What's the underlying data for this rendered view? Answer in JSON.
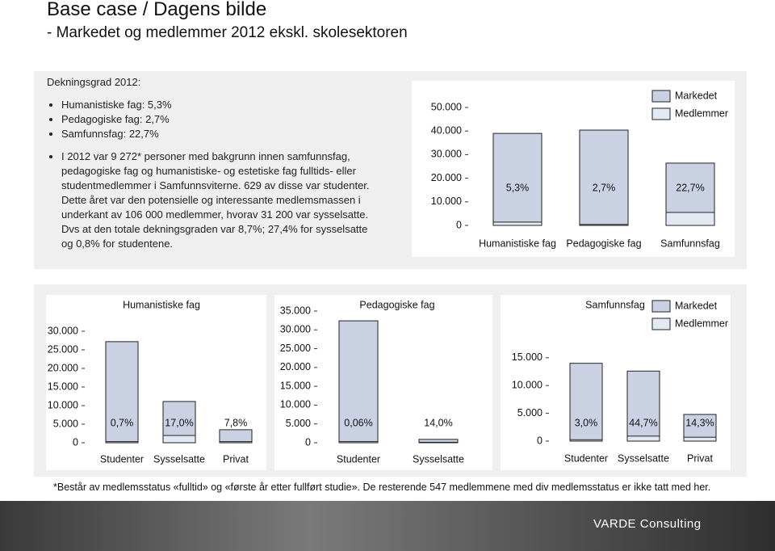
{
  "header": {
    "title": "Base case / Dagens bilde",
    "subtitle": "- Markedet og medlemmer 2012 ekskl. skolesektoren"
  },
  "text_box": {
    "heading": "Dekningsgrad 2012:",
    "bullets": [
      "Humanistiske fag: 5,3%",
      "Pedagogiske fag: 2,7%",
      "Samfunnsfag: 22,7%"
    ],
    "paragraph": "I 2012 var 9 272* personer med bakgrunn innen samfunnsfag, pedagogiske fag og humanistiske- og estetiske fag fulltids- eller studentmedlemmer i Samfunnsviterne. 629 av disse var studenter. Dette året var den potensielle og interessante medlemsmassen i underkant av 106 000 medlemmer, hvorav 31 200 var sysselsatte. Dvs at den totale dekningsgraden var 8,7%; 27,4% for sysselsatte og 0,8% for studentene."
  },
  "chart_data": [
    {
      "type": "bar",
      "categories": [
        "Humanistiske fag",
        "Pedagogiske fag",
        "Samfunnsfag"
      ],
      "series": [
        {
          "name": "Markedet",
          "color": "#c9d1e3",
          "values": [
            39000,
            40400,
            26400
          ]
        },
        {
          "name": "Medlemmer",
          "color": "#e3e9f2",
          "values": [
            1400,
            400,
            5500
          ]
        }
      ],
      "labels": {
        "values": [
          5.3,
          2.7,
          22.7
        ],
        "value_labels": [
          "5,3%",
          "2,7%",
          "22,7%"
        ]
      },
      "ylim": [
        0,
        50000
      ],
      "yticks": [
        0,
        {
          "value": 10000,
          "label": "10.000"
        },
        {
          "value": 20000,
          "label": "20.000"
        },
        {
          "value": 30000,
          "label": "30.000"
        },
        {
          "value": 40000,
          "label": "40.000"
        },
        {
          "value": 50000,
          "label": "50.000"
        }
      ],
      "legend": "top-right"
    },
    {
      "type": "bar",
      "title": "Humanistiske fag",
      "categories": [
        "Studenter",
        "Sysselsatte",
        "Privat"
      ],
      "series": [
        {
          "name": "Markedet",
          "color": "#c9d1e3",
          "values": [
            27200,
            11100,
            3500
          ]
        },
        {
          "name": "Medlemmer",
          "color": "#e3e9f2",
          "values": [
            300,
            1950,
            300
          ]
        }
      ],
      "labels": {
        "values": [
          0.7,
          17.0,
          7.8
        ],
        "value_labels": [
          "0,7%",
          "17,0%",
          "7,8%"
        ]
      },
      "ylim": [
        0,
        30000
      ],
      "yticks": [
        0,
        {
          "value": 5000,
          "label": "5.000"
        },
        {
          "value": 10000,
          "label": "10.000"
        },
        {
          "value": 15000,
          "label": "15.000"
        },
        {
          "value": 20000,
          "label": "20.000"
        },
        {
          "value": 25000,
          "label": "25.000"
        },
        {
          "value": 30000,
          "label": "30.000"
        }
      ]
    },
    {
      "type": "bar",
      "title": "Pedagogiske fag",
      "categories": [
        "Studenter",
        "Sysselsatte"
      ],
      "series": [
        {
          "name": "Markedet",
          "color": "#c9d1e3",
          "values": [
            32400,
            900
          ]
        },
        {
          "name": "Medlemmer",
          "color": "#e3e9f2",
          "values": [
            300,
            130
          ]
        }
      ],
      "labels": {
        "values": [
          0.06,
          14.0
        ],
        "value_labels": [
          "0,06%",
          "14,0%"
        ]
      },
      "ylim": [
        0,
        35000
      ],
      "yticks": [
        0,
        {
          "value": 5000,
          "label": "5.000"
        },
        {
          "value": 10000,
          "label": "10.000"
        },
        {
          "value": 15000,
          "label": "15.000"
        },
        {
          "value": 20000,
          "label": "20.000"
        },
        {
          "value": 25000,
          "label": "25.000"
        },
        {
          "value": 30000,
          "label": "30.000"
        },
        {
          "value": 35000,
          "label": "35.000"
        }
      ]
    },
    {
      "type": "bar",
      "title": "Samfunnsfag",
      "categories": [
        "Studenter",
        "Sysselsatte",
        "Privat"
      ],
      "series": [
        {
          "name": "Markedet",
          "color": "#c9d1e3",
          "values": [
            14000,
            12600,
            4800
          ]
        },
        {
          "name": "Medlemmer",
          "color": "#e3e9f2",
          "values": [
            250,
            900,
            700
          ]
        }
      ],
      "labels": {
        "values": [
          3.0,
          44.7,
          14.3
        ],
        "value_labels": [
          "3,0%",
          "44,7%",
          "14,3%"
        ]
      },
      "ylim": [
        0,
        25000
      ],
      "yticks": [
        0,
        {
          "value": 5000,
          "label": "5.000"
        },
        {
          "value": 10000,
          "label": "10.000"
        },
        {
          "value": 15000,
          "label": "15.000"
        }
      ],
      "legend": "top-right"
    }
  ],
  "footnote": "*Består av medlemsstatus «fulltid» og «første år etter fullført studie». De resterende 547 medlemmene med div medlemsstatus er ikke tatt med her.",
  "logo": "VARDE Consulting"
}
